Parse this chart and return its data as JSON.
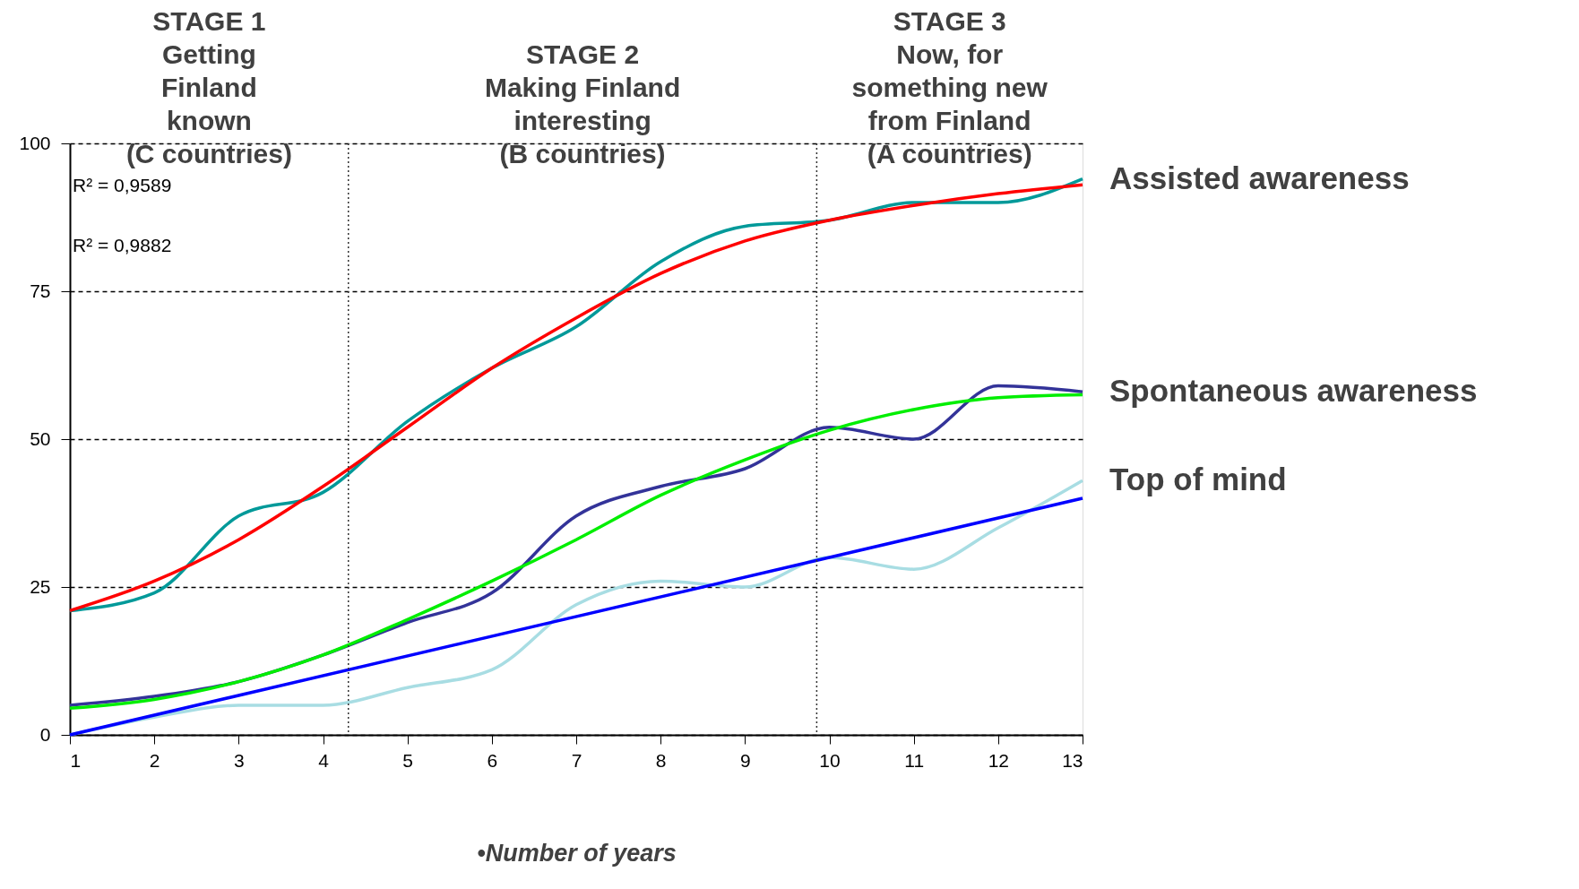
{
  "chart_data": {
    "type": "line",
    "x": [
      1,
      2,
      3,
      4,
      5,
      6,
      7,
      8,
      9,
      10,
      11,
      12,
      13
    ],
    "series": [
      {
        "name": "Assisted awareness",
        "color": "#009999",
        "values": [
          21,
          24,
          37,
          41,
          53,
          62,
          69,
          80,
          86,
          87,
          90,
          90,
          94
        ]
      },
      {
        "color": "#ff0000",
        "values": [
          21,
          26,
          33,
          42,
          52,
          62,
          70.5,
          78,
          83.5,
          87,
          89.5,
          91.5,
          93
        ]
      },
      {
        "name": "Spontaneous awareness",
        "color": "#333399",
        "values": [
          5,
          6.5,
          9,
          13.5,
          19,
          24,
          37,
          42,
          45,
          52,
          50,
          59,
          58
        ]
      },
      {
        "color": "#00ee00",
        "values": [
          4.5,
          6,
          9,
          13.5,
          19.5,
          26,
          33,
          40.5,
          46.5,
          51.5,
          55,
          57,
          57.5
        ]
      },
      {
        "name": "Top of mind",
        "color": "#a8dde3",
        "values": [
          0,
          3,
          5,
          5,
          8,
          11,
          22,
          26,
          25,
          30,
          28,
          35,
          43
        ]
      },
      {
        "color": "#0000ff",
        "x": [
          1,
          13
        ],
        "values": [
          0,
          40
        ]
      }
    ],
    "xlabel": "•Number of years",
    "xlim": [
      1,
      13
    ],
    "xticks": [
      1,
      2,
      3,
      4,
      5,
      6,
      7,
      8,
      9,
      10,
      11,
      12,
      13
    ],
    "ylim": [
      0,
      100
    ],
    "yticks": [
      0,
      25,
      50,
      75,
      100
    ],
    "grid": "y",
    "ref_lines": [
      {
        "axis": "x",
        "value": 4.3,
        "line_style": "dotted"
      },
      {
        "axis": "x",
        "value": 9.85,
        "line_style": "dotted"
      }
    ],
    "annotations": [
      "STAGE 1\nGetting\nFinland\nknown\n(C countries)",
      "STAGE 2\nMaking Finland\ninteresting\n(B countries)",
      "STAGE 3\nNow, for\nsomething new\nfrom Finland\n(A countries)",
      "R² = 0,9589",
      "R² = 0,9882"
    ],
    "legend": false,
    "marker": "none",
    "line_style": "solid"
  }
}
